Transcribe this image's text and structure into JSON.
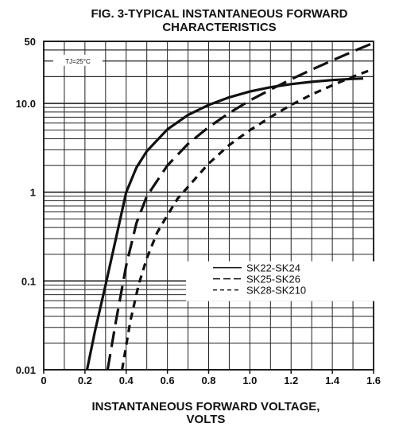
{
  "chart_data": {
    "type": "line",
    "title_line1": "FIG. 3-TYPICAL INSTANTANEOUS FORWARD",
    "title_line2": "CHARACTERISTICS",
    "xlabel_line1": "INSTANTANEOUS FORWARD VOLTAGE,",
    "xlabel_line2": "VOLTS",
    "ylabel": "",
    "xlim": [
      0,
      1.6
    ],
    "ylim": [
      0.01,
      50
    ],
    "y_scale": "log",
    "grid": true,
    "x_ticks": [
      0,
      0.2,
      0.4,
      0.6,
      0.8,
      1.0,
      1.2,
      1.4,
      1.6
    ],
    "x_tick_labels": [
      "0",
      "0.2",
      "0.4",
      "0.6",
      "0.8",
      "1.0",
      "1.2",
      "1.4",
      "1.6"
    ],
    "y_ticks": [
      0.01,
      0.1,
      1,
      10,
      50
    ],
    "y_tick_labels": [
      "0.01",
      "0.1",
      "1",
      "10.0",
      "50"
    ],
    "annotation": "TJ=25°C",
    "legend_position": "lower-right",
    "series": [
      {
        "name": "SK22-SK24",
        "dash": "solid",
        "x": [
          0.21,
          0.25,
          0.3,
          0.35,
          0.4,
          0.45,
          0.5,
          0.6,
          0.7,
          0.8,
          0.9,
          1.0,
          1.1,
          1.2,
          1.3,
          1.4,
          1.5,
          1.55
        ],
        "y": [
          0.01,
          0.028,
          0.09,
          0.3,
          1.0,
          1.9,
          2.9,
          5.1,
          7.4,
          9.6,
          11.7,
          13.6,
          15.2,
          16.5,
          17.5,
          18.3,
          18.9,
          19.1
        ]
      },
      {
        "name": "SK25-SK26",
        "dash": "long-dash",
        "x": [
          0.31,
          0.35,
          0.4,
          0.45,
          0.5,
          0.6,
          0.7,
          0.8,
          0.9,
          1.0,
          1.1,
          1.2,
          1.3,
          1.4,
          1.5,
          1.59
        ],
        "y": [
          0.01,
          0.035,
          0.15,
          0.45,
          0.9,
          2.0,
          3.5,
          5.4,
          7.8,
          10.8,
          14.3,
          18.7,
          24.0,
          30.5,
          38.5,
          47.0
        ]
      },
      {
        "name": "SK28-SK210",
        "dash": "short-dash",
        "x": [
          0.38,
          0.42,
          0.46,
          0.5,
          0.55,
          0.6,
          0.65,
          0.7,
          0.8,
          0.9,
          1.0,
          1.1,
          1.2,
          1.3,
          1.4,
          1.5,
          1.59
        ],
        "y": [
          0.01,
          0.035,
          0.09,
          0.18,
          0.35,
          0.55,
          0.85,
          1.15,
          2.1,
          3.4,
          5.0,
          7.0,
          9.6,
          12.6,
          16.0,
          20.0,
          24.0
        ]
      }
    ]
  }
}
